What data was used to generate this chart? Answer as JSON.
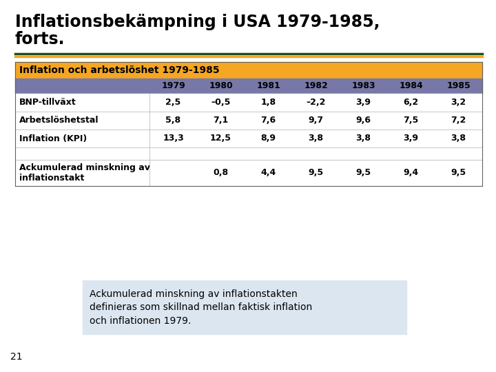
{
  "title_line1": "Inflationsbekämpning i USA 1979-1985,",
  "title_line2": "forts.",
  "title_fontsize": 17,
  "title_color": "#000000",
  "separator_color_dark": "#1a4f1a",
  "separator_color_orange": "#f5a623",
  "table_header_label": "Inflation och arbetslöshet 1979-1985",
  "table_header_bg": "#f5a623",
  "table_header_color": "#000000",
  "table_header_fontsize": 10,
  "col_header_bg": "#7878a8",
  "col_header_color": "#000000",
  "col_header_fontsize": 9,
  "years": [
    "1979",
    "1980",
    "1981",
    "1982",
    "1983",
    "1984",
    "1985"
  ],
  "rows": [
    {
      "label": "BNP-tillväxt",
      "values": [
        "2,5",
        "–0,5",
        "1,8",
        "–2,2",
        "3,9",
        "6,2",
        "3,2"
      ],
      "bg": "#ffffff",
      "tall": false
    },
    {
      "label": "Arbetslöshetstal",
      "values": [
        "5,8",
        "7,1",
        "7,6",
        "9,7",
        "9,6",
        "7,5",
        "7,2"
      ],
      "bg": "#ffffff",
      "tall": false
    },
    {
      "label": "Inflation (KPI)",
      "values": [
        "13,3",
        "12,5",
        "8,9",
        "3,8",
        "3,8",
        "3,9",
        "3,8"
      ],
      "bg": "#ffffff",
      "tall": false
    },
    {
      "label": "",
      "values": [
        "",
        "",
        "",
        "",
        "",
        "",
        ""
      ],
      "bg": "#ffffff",
      "tall": false
    },
    {
      "label": "Ackumulerad minskning av\ninflationstakt",
      "values": [
        "",
        "0,8",
        "4,4",
        "9,5",
        "9,5",
        "9,4",
        "9,5"
      ],
      "bg": "#ffffff",
      "tall": true
    }
  ],
  "note_text": "Ackumulerad minskning av inflationstakten\ndefinieras som skillnad mellan faktisk inflation\noch inflationen 1979.",
  "note_bg": "#dce6f0",
  "note_fontsize": 10,
  "page_number": "21",
  "bg_color": "#ffffff",
  "table_body_fontsize": 9,
  "row_label_fontsize": 9
}
